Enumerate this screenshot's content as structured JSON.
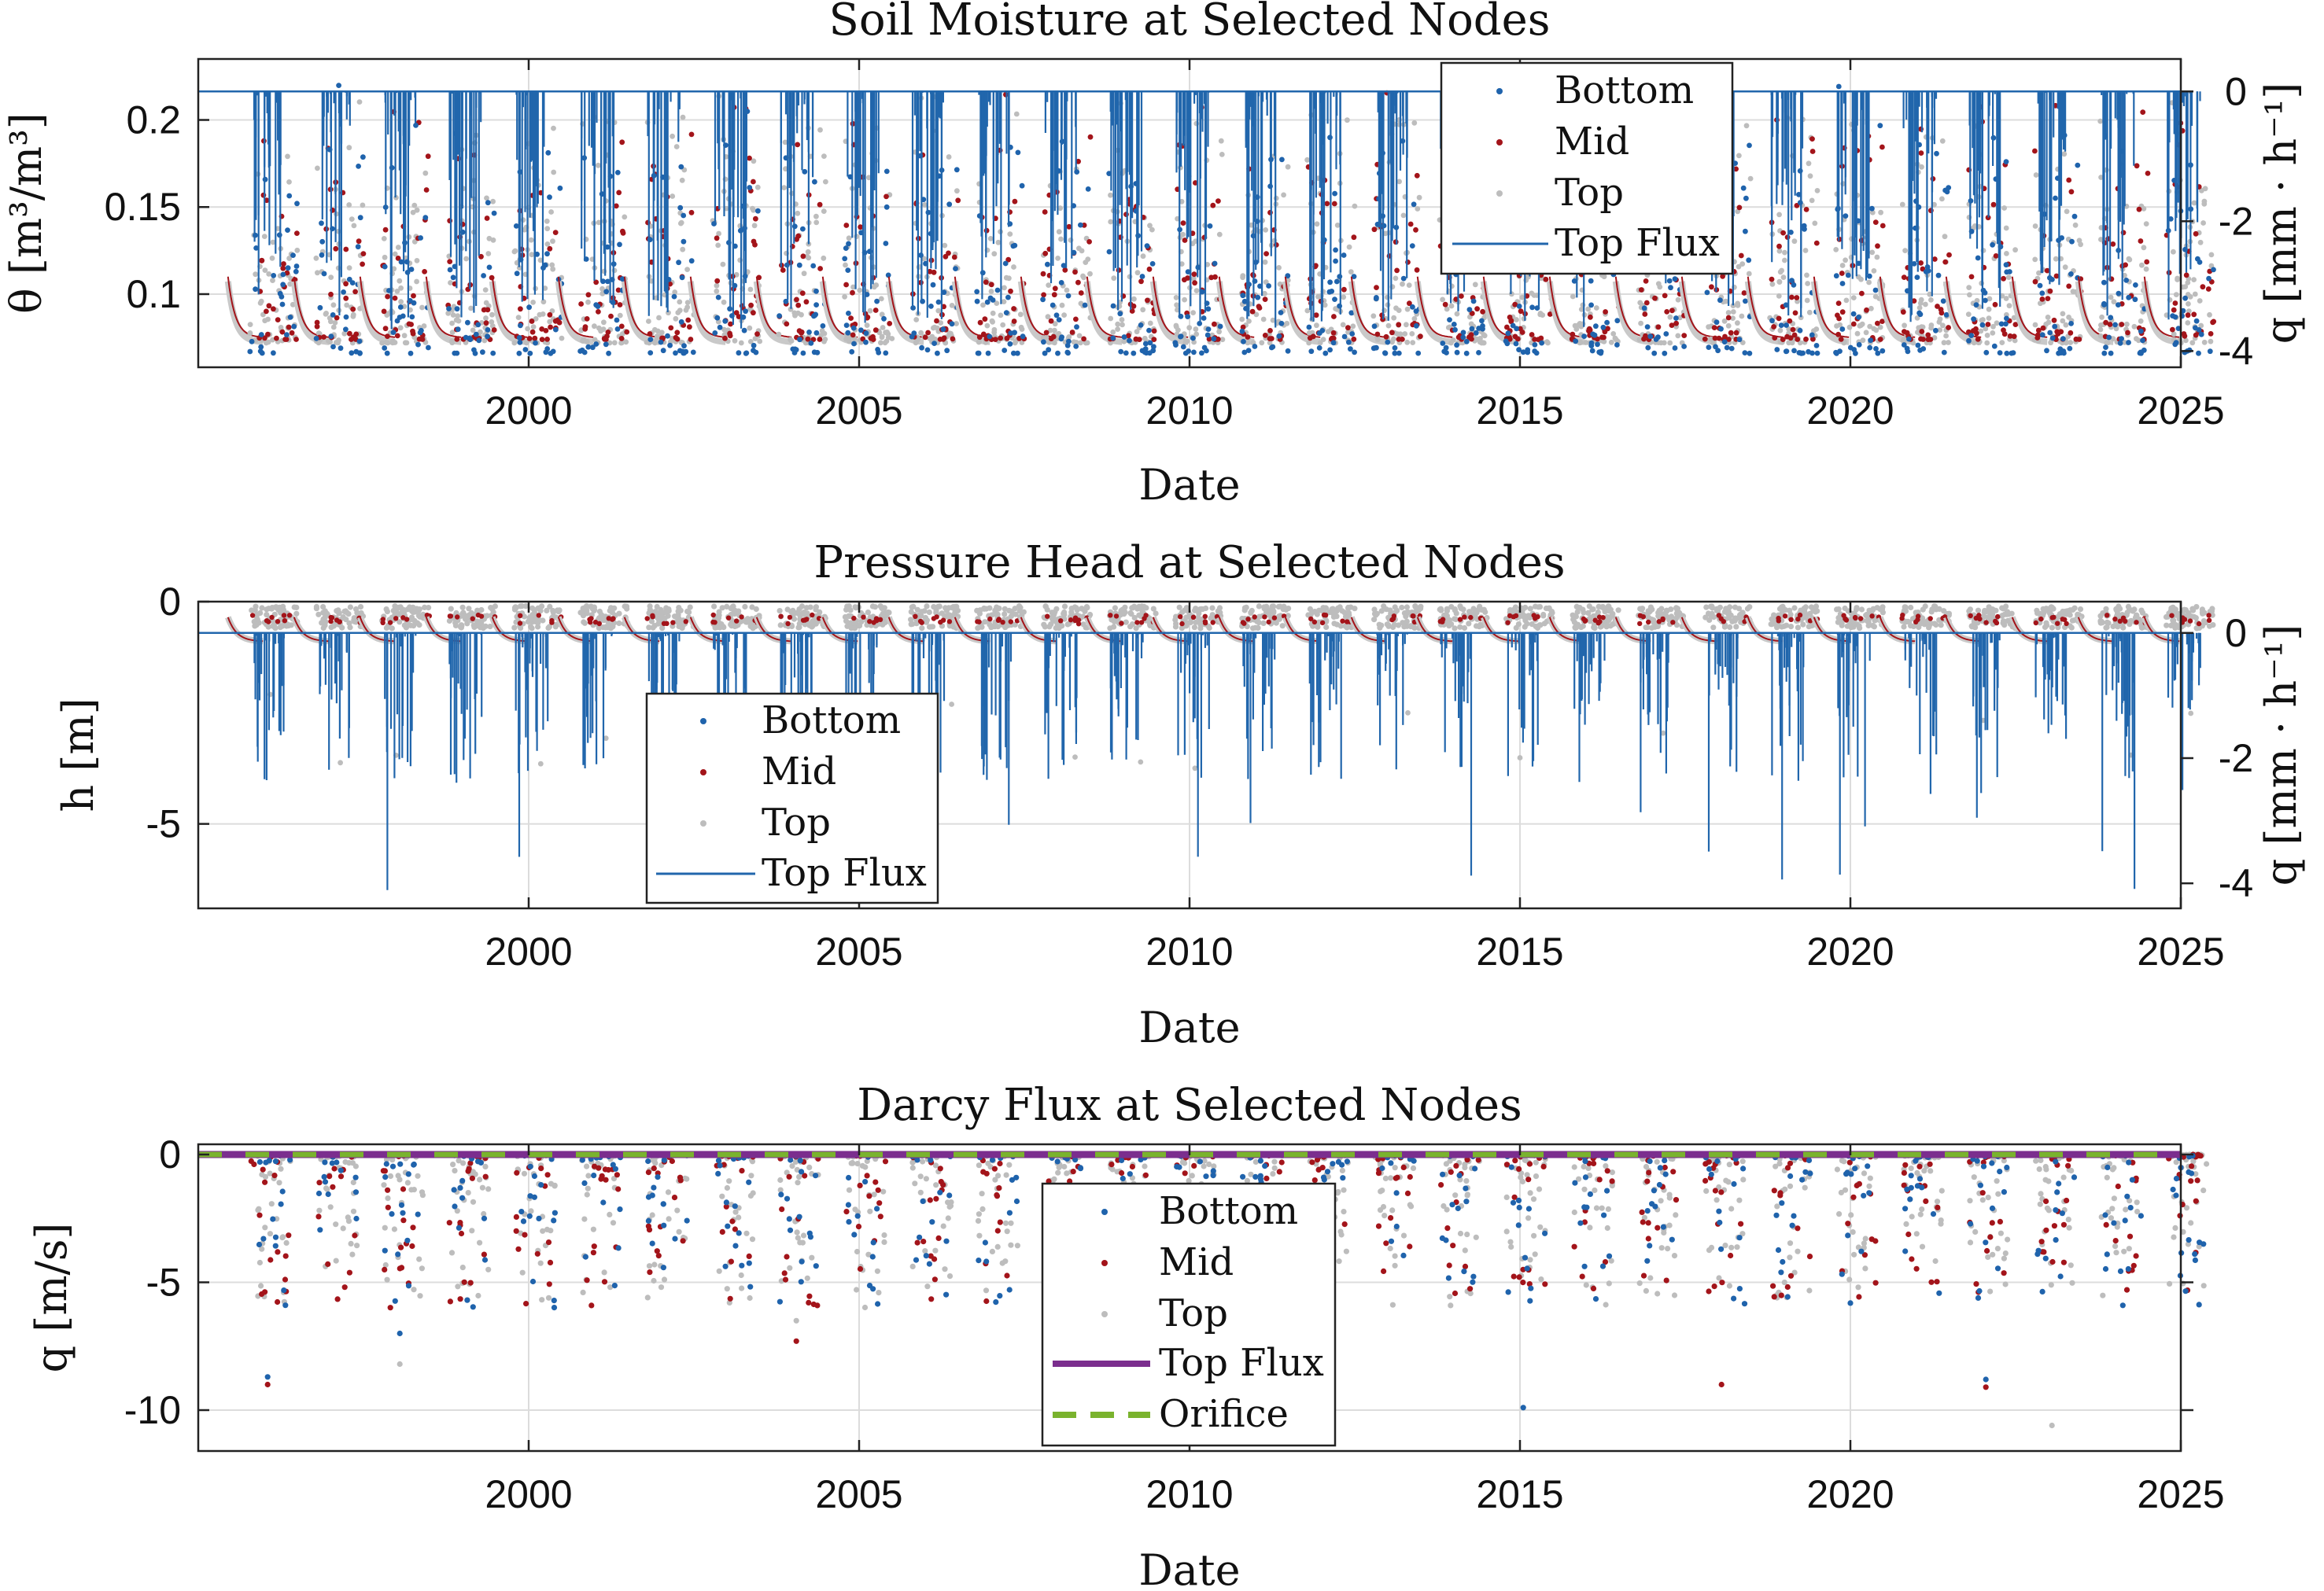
{
  "chart_data": [
    {
      "type": "scatter",
      "title": "Soil Moisture at Selected Nodes",
      "xlabel": "Date",
      "ylabel": "θ [m³/m³]",
      "ylabel_right": "q [mm · h⁻¹]",
      "xlim": [
        1995,
        2025
      ],
      "ylim": [
        0.058,
        0.235
      ],
      "ylim_right": [
        -4.25,
        0.5
      ],
      "yticks": [
        0.1,
        0.15,
        0.2
      ],
      "ytick_labels": [
        "0.1",
        "0.15",
        "0.2"
      ],
      "yticks_right": [
        -4,
        -2,
        0
      ],
      "ytick_labels_right": [
        "-4",
        "-2",
        "0"
      ],
      "xticks": [
        2000,
        2005,
        2010,
        2015,
        2020,
        2025
      ],
      "xtick_labels": [
        "2000",
        "2005",
        "2010",
        "2015",
        "2020",
        "2025"
      ],
      "grid": true,
      "legend_position": "top-right",
      "series": [
        {
          "name": "Bottom",
          "marker": "dot",
          "color": "#1f63ac",
          "baseline": 0.072,
          "peak": 0.2
        },
        {
          "name": "Mid",
          "marker": "dot",
          "color": "#a3141a",
          "baseline": 0.074,
          "peak": 0.2
        },
        {
          "name": "Top",
          "marker": "dot",
          "color": "#bdbdbd",
          "baseline": 0.066,
          "peak": 0.2
        },
        {
          "name": "Top Flux",
          "marker": "line",
          "color": "#2166ac",
          "axis": "right",
          "baseline": 0,
          "min": -4.0
        }
      ]
    },
    {
      "type": "scatter",
      "title": "Pressure Head at Selected Nodes",
      "xlabel": "Date",
      "ylabel": "h [m]",
      "ylabel_right": "q [mm · h⁻¹]",
      "xlim": [
        1995,
        2025
      ],
      "ylim": [
        -6.9,
        0
      ],
      "ylim_right": [
        -4.4,
        0.5
      ],
      "yticks": [
        -5,
        0
      ],
      "ytick_labels": [
        "-5",
        "0"
      ],
      "yticks_right": [
        -4,
        -2,
        0
      ],
      "ytick_labels_right": [
        "-4",
        "-2",
        "0"
      ],
      "xticks": [
        2000,
        2005,
        2010,
        2015,
        2020,
        2025
      ],
      "xtick_labels": [
        "2000",
        "2005",
        "2010",
        "2015",
        "2020",
        "2025"
      ],
      "grid": true,
      "legend_position": "center-left",
      "series": [
        {
          "name": "Bottom",
          "marker": "dot",
          "color": "#1f63ac",
          "baseline": -0.9,
          "peak": -0.3
        },
        {
          "name": "Mid",
          "marker": "dot",
          "color": "#a3141a",
          "baseline": -0.9,
          "peak": -0.3
        },
        {
          "name": "Top",
          "marker": "dot",
          "color": "#bdbdbd",
          "baseline": -1.1,
          "peak": -0.2
        },
        {
          "name": "Top Flux",
          "marker": "line",
          "color": "#2166ac",
          "axis": "right",
          "baseline": 0,
          "min": -4.3
        }
      ]
    },
    {
      "type": "scatter",
      "title": "Darcy Flux at Selected Nodes",
      "xlabel": "Date",
      "ylabel": "q [m/s]",
      "xlim": [
        1995,
        2025
      ],
      "ylim": [
        -11.6,
        0.4
      ],
      "yticks": [
        -10,
        -5,
        0
      ],
      "ytick_labels": [
        "-10",
        "-5",
        "0"
      ],
      "xticks": [
        2000,
        2005,
        2010,
        2015,
        2020,
        2025
      ],
      "xtick_labels": [
        "2000",
        "2005",
        "2010",
        "2015",
        "2020",
        "2025"
      ],
      "grid": true,
      "legend_position": "bottom-center",
      "series": [
        {
          "name": "Bottom",
          "marker": "dot",
          "color": "#1f63ac",
          "min": -9.0
        },
        {
          "name": "Mid",
          "marker": "dot",
          "color": "#a3141a",
          "min": -9.2
        },
        {
          "name": "Top",
          "marker": "dot",
          "color": "#bdbdbd",
          "min": -10.6
        },
        {
          "name": "Top Flux",
          "marker": "line",
          "color": "#7b2e8e",
          "value": 0
        },
        {
          "name": "Orifice",
          "marker": "dashed-line",
          "color": "#7ab32e",
          "value": 0
        }
      ]
    }
  ]
}
